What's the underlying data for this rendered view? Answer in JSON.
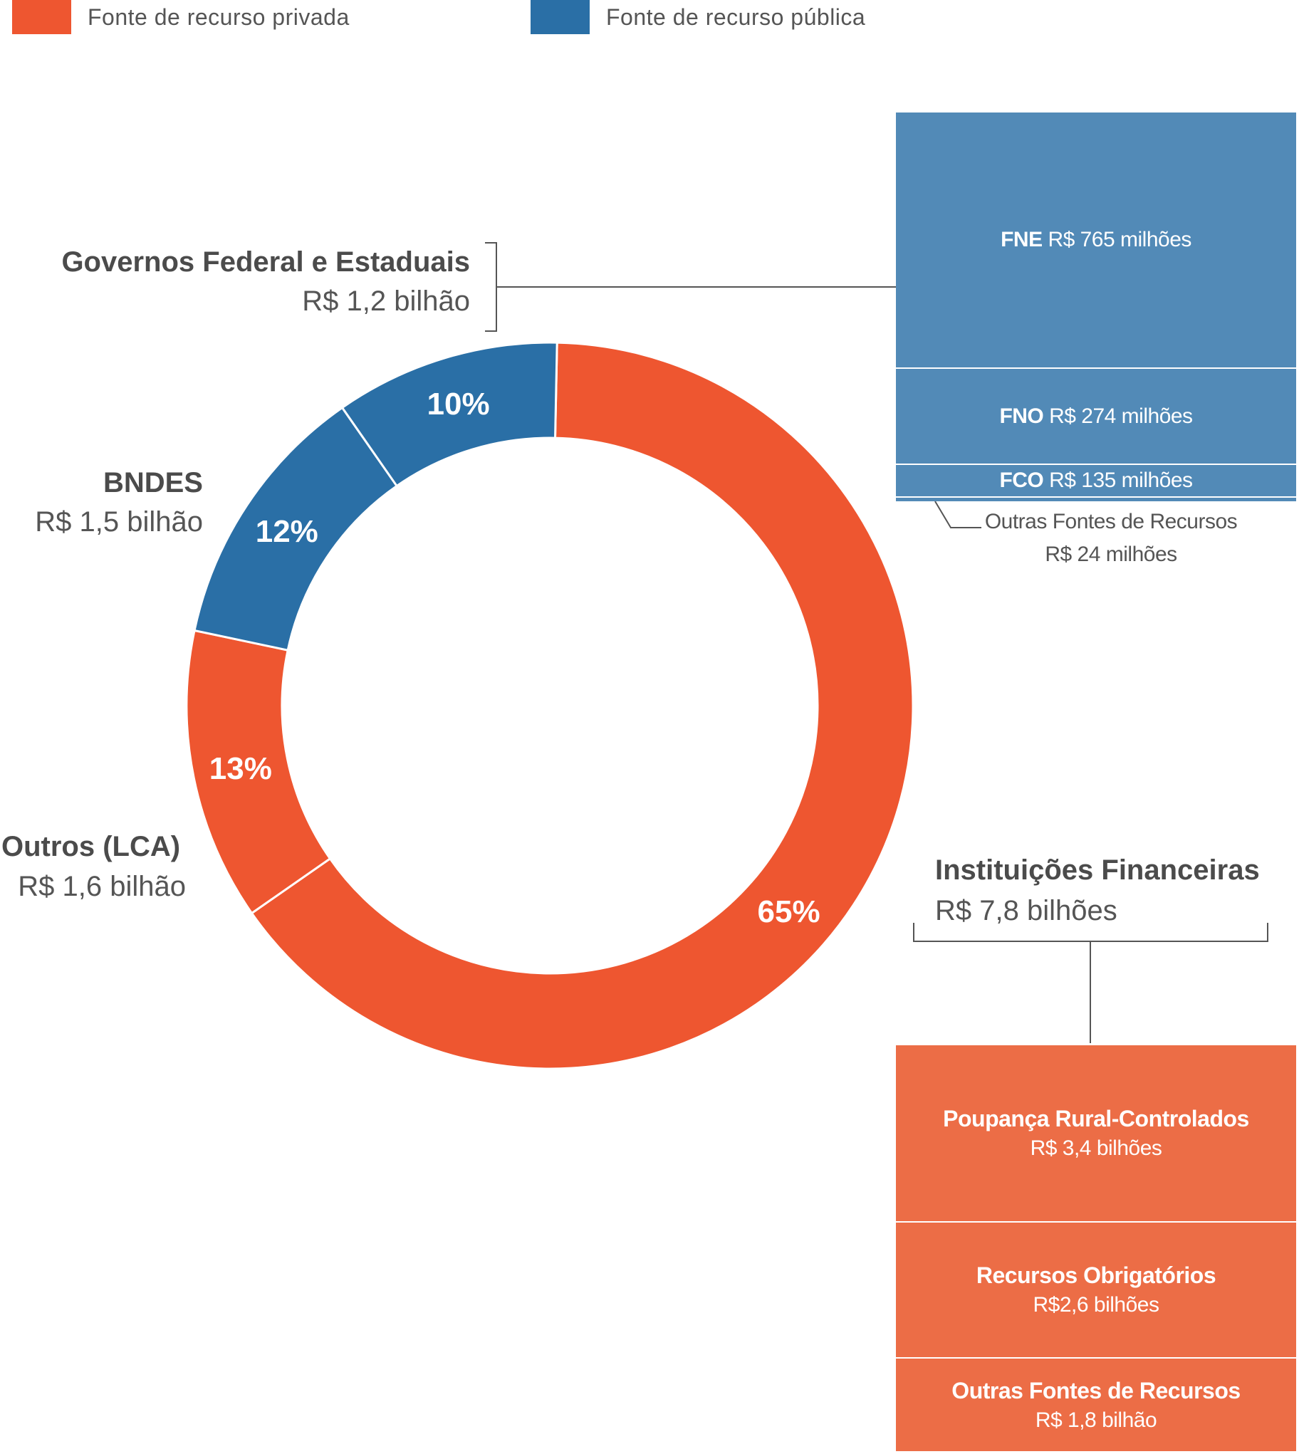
{
  "legend": [
    {
      "label": "Fonte de recurso privada",
      "color": "#ee5630"
    },
    {
      "label": "Fonte de recurso pública",
      "color": "#2a6fa6"
    }
  ],
  "chart_data": {
    "type": "donut",
    "slices": [
      {
        "label": "Instituições Financeiras",
        "value_text": "R$ 7,8 bilhões",
        "percent": 65,
        "percent_label": "65%",
        "source": "privada",
        "color": "#ee5630"
      },
      {
        "label": "Outros (LCA)",
        "value_text": "R$ 1,6 bilhão",
        "percent": 13,
        "percent_label": "13%",
        "source": "privada",
        "color": "#ee5630"
      },
      {
        "label": "BNDES",
        "value_text": "R$ 1,5 bilhão",
        "percent": 12,
        "percent_label": "12%",
        "source": "pública",
        "color": "#2a6fa6"
      },
      {
        "label": "Governos Federal e Estaduais",
        "value_text": "R$ 1,2 bilhão",
        "percent": 10,
        "percent_label": "10%",
        "source": "pública",
        "color": "#2a6fa6"
      }
    ],
    "public_breakdown": [
      {
        "name": "FNE",
        "value_text": "R$ 765 milhões",
        "value": 765
      },
      {
        "name": "FNO",
        "value_text": "R$ 274 milhões",
        "value": 274
      },
      {
        "name": "FCO",
        "value_text": "R$ 135 milhões",
        "value": 135
      },
      {
        "name": "Outras Fontes de Recursos",
        "value_text": "R$ 24 milhões",
        "value": 24
      }
    ],
    "private_breakdown": [
      {
        "name": "Poupança Rural-Controlados",
        "value_text": "R$ 3,4 bilhões",
        "value": 3.4
      },
      {
        "name": "Recursos Obrigatórios",
        "value_text": "R$2,6 bilhões",
        "value": 2.6
      },
      {
        "name": "Outras Fontes de Recursos",
        "value_text": "R$ 1,8 bilhão",
        "value": 1.8
      }
    ]
  }
}
